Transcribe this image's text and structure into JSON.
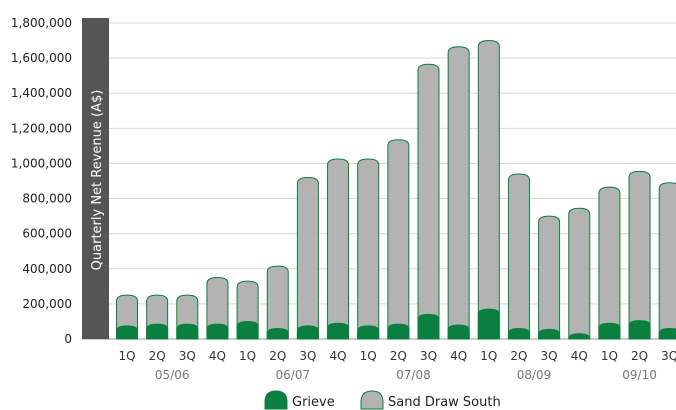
{
  "chart_data": {
    "type": "bar",
    "stacked": true,
    "ylabel": "Quarterly Net Revenue (A$)",
    "ylim": [
      0,
      1800000
    ],
    "yticks": [
      "0",
      "200,000",
      "400,000",
      "600,000",
      "800,000",
      "1,000,000",
      "1,200,000",
      "1,400,000",
      "1,600,000",
      "1,800,000"
    ],
    "categories": [
      "1Q",
      "2Q",
      "3Q",
      "4Q",
      "1Q",
      "2Q",
      "3Q",
      "4Q",
      "1Q",
      "2Q",
      "3Q",
      "4Q",
      "1Q",
      "2Q",
      "3Q",
      "4Q",
      "1Q",
      "2Q",
      "3Q"
    ],
    "groups": [
      {
        "label": "05/06",
        "start": 0,
        "end": 3
      },
      {
        "label": "06/07",
        "start": 4,
        "end": 7
      },
      {
        "label": "07/08",
        "start": 8,
        "end": 11
      },
      {
        "label": "08/09",
        "start": 12,
        "end": 15
      },
      {
        "label": "09/10",
        "start": 16,
        "end": 18
      }
    ],
    "series": [
      {
        "name": "Grieve",
        "color": "#0a7f3f",
        "values": [
          75000,
          85000,
          85000,
          85000,
          100000,
          60000,
          75000,
          90000,
          75000,
          85000,
          140000,
          80000,
          170000,
          60000,
          55000,
          30000,
          90000,
          105000,
          60000
        ]
      },
      {
        "name": "Sand Draw South",
        "color": "#b3b3b3",
        "values": [
          175000,
          165000,
          165000,
          265000,
          230000,
          355000,
          845000,
          935000,
          950000,
          1050000,
          1425000,
          1585000,
          1530000,
          880000,
          645000,
          715000,
          775000,
          850000,
          830000
        ]
      }
    ],
    "grid": true,
    "legend": "bottom"
  }
}
